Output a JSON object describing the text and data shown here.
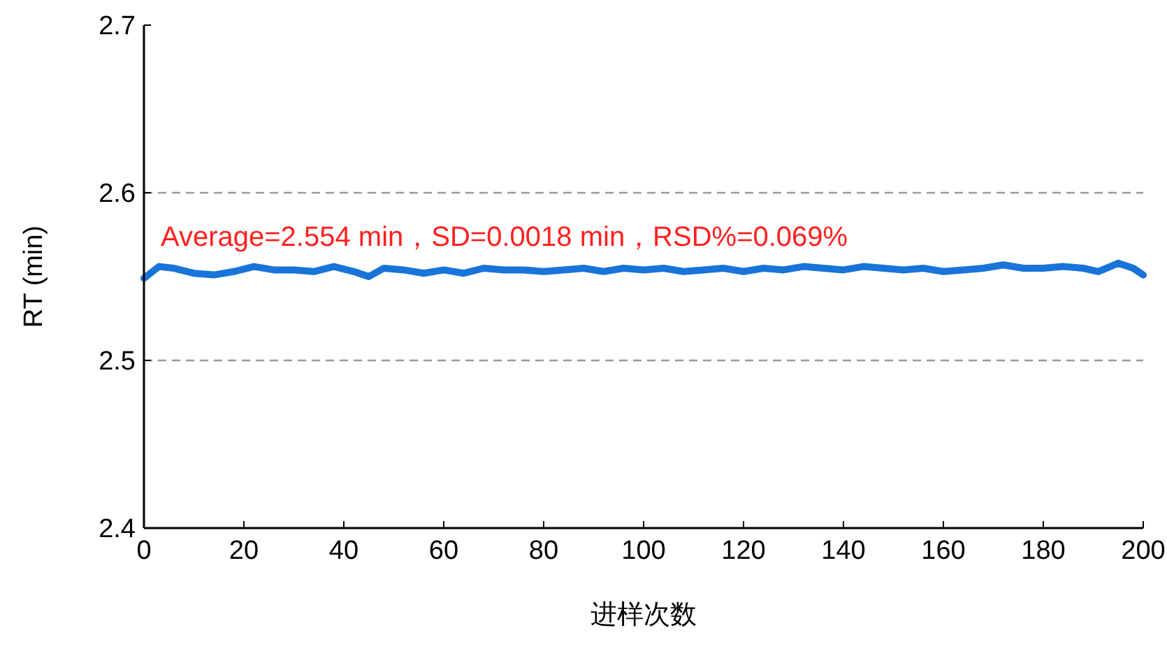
{
  "chart_data": {
    "type": "line",
    "xlabel": "进样次数",
    "ylabel": "RT (min)",
    "x": [
      0,
      3,
      6,
      10,
      14,
      18,
      22,
      26,
      30,
      34,
      38,
      42,
      45,
      48,
      52,
      56,
      60,
      64,
      68,
      72,
      76,
      80,
      84,
      88,
      92,
      96,
      100,
      104,
      108,
      112,
      116,
      120,
      124,
      128,
      132,
      136,
      140,
      144,
      148,
      152,
      156,
      160,
      164,
      168,
      172,
      176,
      180,
      184,
      188,
      191,
      195,
      198,
      200
    ],
    "series": [
      {
        "color": "#1874d8",
        "values": [
          2.549,
          2.556,
          2.555,
          2.552,
          2.551,
          2.553,
          2.556,
          2.554,
          2.554,
          2.553,
          2.556,
          2.553,
          2.55,
          2.555,
          2.554,
          2.552,
          2.554,
          2.552,
          2.555,
          2.554,
          2.554,
          2.553,
          2.554,
          2.555,
          2.553,
          2.555,
          2.554,
          2.555,
          2.553,
          2.554,
          2.555,
          2.553,
          2.555,
          2.554,
          2.556,
          2.555,
          2.554,
          2.556,
          2.555,
          2.554,
          2.555,
          2.553,
          2.554,
          2.555,
          2.557,
          2.555,
          2.555,
          2.556,
          2.555,
          2.553,
          2.558,
          2.555,
          2.551
        ]
      }
    ],
    "xlim": [
      0,
      200
    ],
    "xticks": [
      0,
      20,
      40,
      60,
      80,
      100,
      120,
      140,
      160,
      180,
      200
    ],
    "ylim": [
      2.4,
      2.7
    ],
    "yticks": [
      2.4,
      2.5,
      2.6,
      2.7
    ],
    "ref_lines": [
      {
        "axis": "y",
        "value": 2.5,
        "color": "#999999",
        "line_style": "dashed"
      },
      {
        "axis": "y",
        "value": 2.6,
        "color": "#999999",
        "line_style": "dashed"
      }
    ],
    "annotations": [
      "Average=2.554 min，SD=0.0018 min，RSD%=0.069%"
    ],
    "marker": "none",
    "line_style": "solid"
  }
}
